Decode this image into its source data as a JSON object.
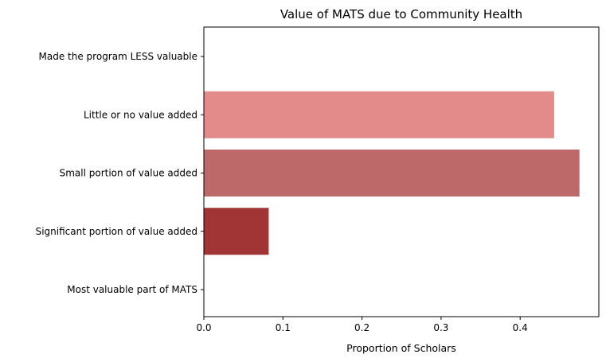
{
  "chart_data": {
    "type": "bar",
    "orientation": "horizontal",
    "title": "Value of MATS due to Community Health",
    "xlabel": "Proportion of Scholars",
    "ylabel": "",
    "categories": [
      "Made the program LESS valuable",
      "Little or no value added",
      "Small portion of value added",
      "Significant portion of value added",
      "Most valuable part of MATS"
    ],
    "values": [
      0.0,
      0.443,
      0.475,
      0.082,
      0.0
    ],
    "colors": [
      "#e6a0a0",
      "#e38b8b",
      "#bd6969",
      "#a13535",
      "#8b1a1a"
    ],
    "xlim": [
      0,
      0.5
    ],
    "xticks": [
      0.0,
      0.1,
      0.2,
      0.3,
      0.4
    ],
    "xtick_labels": [
      "0.0",
      "0.1",
      "0.2",
      "0.3",
      "0.4"
    ],
    "grid": false,
    "legend": "none"
  }
}
